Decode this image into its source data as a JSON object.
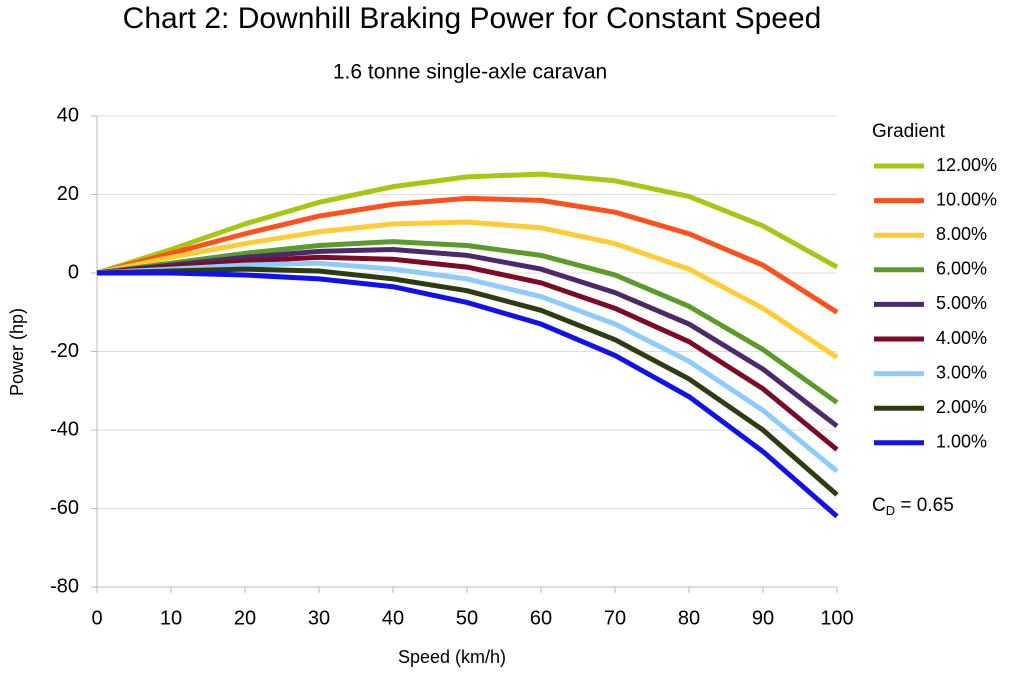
{
  "chart_data": {
    "type": "line",
    "title": "Chart 2: Downhill Braking Power for Constant Speed",
    "subtitle": "1.6 tonne single-axle caravan",
    "x_label": "Speed (km/h)",
    "y_label": "Power (hp)",
    "legend_title": "Gradient",
    "annotation": {
      "main": "C",
      "sub": "D",
      "suffix": " = 0.65"
    },
    "x": [
      0,
      10,
      20,
      30,
      40,
      50,
      60,
      70,
      80,
      90,
      100
    ],
    "xlim": [
      0,
      100
    ],
    "xticks": [
      0,
      10,
      20,
      30,
      40,
      50,
      60,
      70,
      80,
      90,
      100
    ],
    "ylim": [
      -80,
      40
    ],
    "yticks": [
      -80,
      -60,
      -40,
      -20,
      0,
      20,
      40
    ],
    "grid": true,
    "legend": "right",
    "series": [
      {
        "name": "12.00%",
        "color": "#a8c712",
        "values": [
          0,
          6,
          12.5,
          18,
          22,
          24.5,
          25.2,
          23.5,
          19.5,
          12,
          1.5
        ]
      },
      {
        "name": "10.00%",
        "color": "#ff4f1b",
        "values": [
          0,
          5,
          10,
          14.5,
          17.5,
          19,
          18.5,
          15.5,
          10,
          2,
          -10
        ]
      },
      {
        "name": "8.00%",
        "color": "#ffcc33",
        "values": [
          0,
          4,
          7.5,
          10.5,
          12.5,
          13,
          11.5,
          7.5,
          1,
          -9,
          -21.5
        ]
      },
      {
        "name": "6.00%",
        "color": "#5a9b2a",
        "values": [
          0,
          2.5,
          5,
          7,
          8,
          7,
          4.5,
          -0.5,
          -8.5,
          -19.5,
          -33
        ]
      },
      {
        "name": "5.00%",
        "color": "#4b2a6b",
        "values": [
          0,
          2,
          4,
          5.5,
          6,
          4.5,
          1,
          -5,
          -13,
          -24.5,
          -39
        ]
      },
      {
        "name": "4.00%",
        "color": "#7d0a26",
        "values": [
          0,
          1.5,
          3,
          4,
          3.5,
          1.5,
          -2.5,
          -9,
          -17.5,
          -29.5,
          -45
        ]
      },
      {
        "name": "3.00%",
        "color": "#8ecbff",
        "values": [
          0,
          1,
          2,
          2.5,
          1,
          -1.5,
          -6,
          -13,
          -22.5,
          -35,
          -50.5
        ]
      },
      {
        "name": "2.00%",
        "color": "#2d3d11",
        "values": [
          0,
          0.5,
          1,
          0.5,
          -1.5,
          -4.5,
          -9.5,
          -17,
          -27,
          -40,
          -56.5
        ]
      },
      {
        "name": "1.00%",
        "color": "#1111ee",
        "values": [
          0,
          0,
          -0.5,
          -1.5,
          -3.5,
          -7.5,
          -13,
          -21,
          -31.5,
          -45.5,
          -62
        ]
      }
    ]
  }
}
